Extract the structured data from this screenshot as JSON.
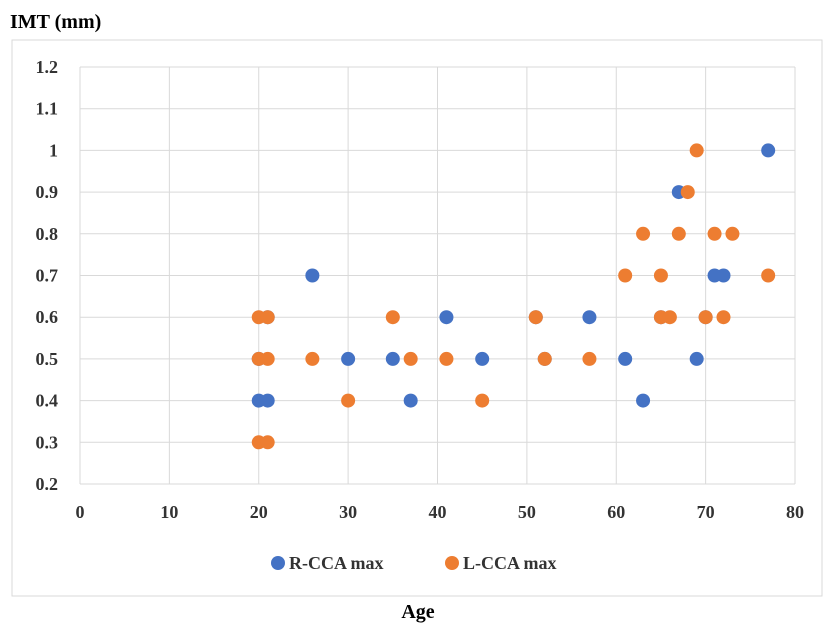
{
  "chart_data": {
    "type": "scatter",
    "ylabel": "IMT (mm)",
    "xlabel": "Age",
    "xlim": [
      0,
      80
    ],
    "ylim": [
      0.2,
      1.2
    ],
    "x_ticks": [
      "0",
      "10",
      "20",
      "30",
      "40",
      "50",
      "60",
      "70",
      "80"
    ],
    "y_ticks": [
      "1.2",
      "1.1",
      "1",
      "0.9",
      "0.8",
      "0.7",
      "0.6",
      "0.5",
      "0.4",
      "0.3",
      "0.2"
    ],
    "grid": true,
    "legend_position": "bottom",
    "series": [
      {
        "name": "R-CCA max",
        "color": "#4472C4",
        "points": [
          [
            20,
            0.4
          ],
          [
            21,
            0.4
          ],
          [
            20,
            0.5
          ],
          [
            26,
            0.7
          ],
          [
            30,
            0.5
          ],
          [
            35,
            0.5
          ],
          [
            37,
            0.4
          ],
          [
            41,
            0.6
          ],
          [
            45,
            0.5
          ],
          [
            51,
            0.6
          ],
          [
            52,
            0.5
          ],
          [
            57,
            0.6
          ],
          [
            61,
            0.5
          ],
          [
            63,
            0.4
          ],
          [
            65,
            0.6
          ],
          [
            67,
            0.9
          ],
          [
            69,
            0.5
          ],
          [
            70,
            0.6
          ],
          [
            71,
            0.7
          ],
          [
            72,
            0.7
          ],
          [
            77,
            1.0
          ],
          [
            21,
            0.6
          ]
        ]
      },
      {
        "name": "L-CCA max",
        "color": "#ED7D31",
        "points": [
          [
            20,
            0.6
          ],
          [
            21,
            0.6
          ],
          [
            20,
            0.5
          ],
          [
            21,
            0.5
          ],
          [
            20,
            0.3
          ],
          [
            21,
            0.3
          ],
          [
            26,
            0.5
          ],
          [
            30,
            0.4
          ],
          [
            35,
            0.6
          ],
          [
            37,
            0.5
          ],
          [
            41,
            0.5
          ],
          [
            45,
            0.4
          ],
          [
            51,
            0.6
          ],
          [
            52,
            0.5
          ],
          [
            57,
            0.5
          ],
          [
            61,
            0.7
          ],
          [
            63,
            0.8
          ],
          [
            65,
            0.7
          ],
          [
            65,
            0.6
          ],
          [
            66,
            0.6
          ],
          [
            67,
            0.8
          ],
          [
            68,
            0.9
          ],
          [
            69,
            1.0
          ],
          [
            70,
            0.6
          ],
          [
            71,
            0.8
          ],
          [
            72,
            0.6
          ],
          [
            73,
            0.8
          ],
          [
            77,
            0.7
          ]
        ]
      }
    ]
  }
}
